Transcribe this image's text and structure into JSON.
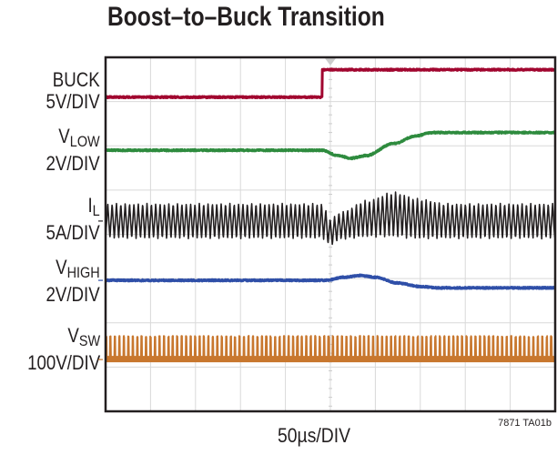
{
  "title": "Boost–to–Buck Transition",
  "figure_id": "7871 TA01b",
  "chart_data": {
    "type": "line",
    "title": "Boost–to–Buck Transition",
    "xlabel": "50µs/DIV",
    "x_units": "µs",
    "xlim": [
      0,
      500
    ],
    "ylim_div": [
      0,
      8
    ],
    "grid": true,
    "grid_divisions": {
      "x": 10,
      "y": 8
    },
    "trigger_time": 250,
    "series": [
      {
        "name": "BUCK",
        "scale": "5V/DIV",
        "color": "#a1062f",
        "kind": "step",
        "t": [
          0,
          241,
          241.5,
          500
        ],
        "level_div": [
          7.1,
          7.1,
          7.72,
          7.72
        ]
      },
      {
        "name": "VLOW",
        "name_main": "V",
        "name_sub": "LOW",
        "scale": "2V/DIV",
        "color": "#2e8b3e",
        "kind": "smooth",
        "t": [
          0,
          241,
          258,
          273,
          290,
          320,
          345,
          362,
          500
        ],
        "level_div": [
          5.9,
          5.9,
          5.78,
          5.72,
          5.78,
          6.05,
          6.22,
          6.3,
          6.3
        ]
      },
      {
        "name": "IL",
        "name_main": "I",
        "name_sub": "L",
        "scale": "5A/DIV",
        "color": "#231f20",
        "kind": "switching",
        "period_us": 4.85,
        "t": [
          0,
          241,
          250,
          262,
          290,
          320,
          350,
          380,
          500
        ],
        "center_div": [
          4.3,
          4.3,
          4.05,
          4.2,
          4.35,
          4.45,
          4.35,
          4.3,
          4.3
        ],
        "amplitude_div": [
          0.4,
          0.4,
          0.3,
          0.32,
          0.42,
          0.52,
          0.46,
          0.4,
          0.4
        ]
      },
      {
        "name": "VHIGH",
        "name_main": "V",
        "name_sub": "HIGH",
        "scale": "2V/DIV",
        "color": "#2f4fa8",
        "kind": "smooth",
        "t": [
          0,
          245,
          265,
          283,
          300,
          325,
          350,
          370,
          500
        ],
        "level_div": [
          2.96,
          2.96,
          3.03,
          3.07,
          3.03,
          2.9,
          2.82,
          2.79,
          2.79
        ]
      },
      {
        "name": "VSW",
        "name_main": "V",
        "name_sub": "SW",
        "scale": "100V/DIV",
        "color": "#c8772e",
        "kind": "pulse",
        "period_us": 4.95,
        "low_div": 1.17,
        "high_div": 1.69
      }
    ]
  }
}
